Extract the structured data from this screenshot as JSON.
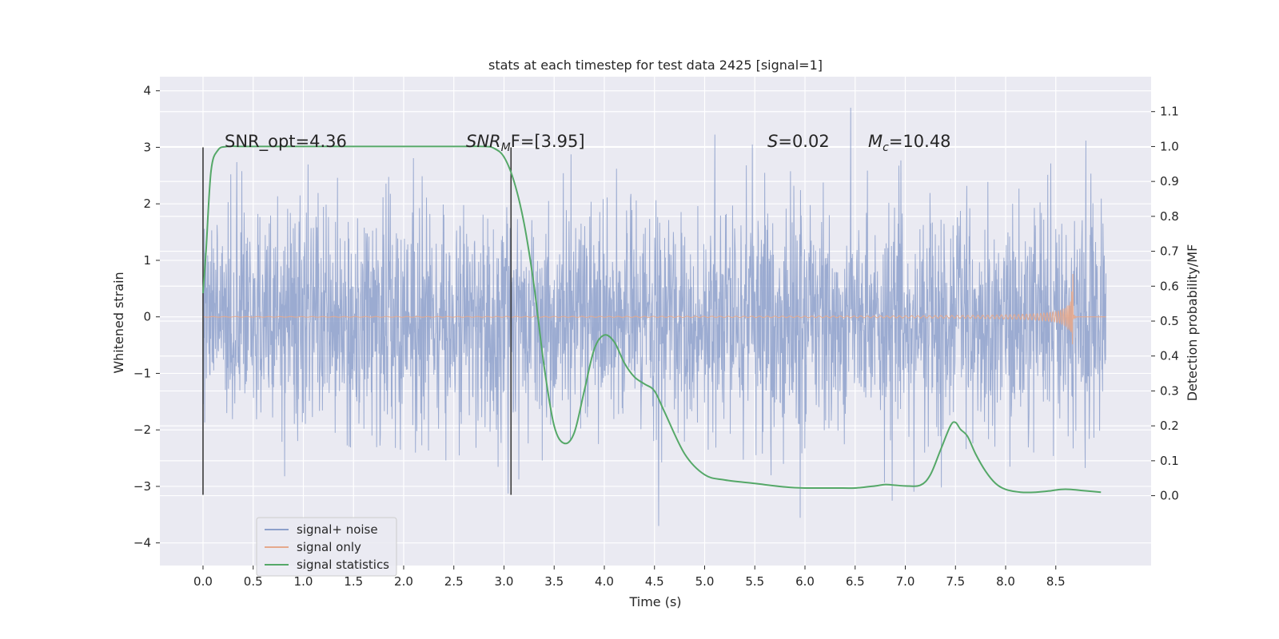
{
  "chart_data": {
    "type": "line",
    "title": "stats at each timestep for test data 2425 [signal=1]",
    "xlabel": "Time (s)",
    "ylabel": "Whitened strain",
    "y2label": "Detection probability/MF",
    "xlim": [
      -0.43,
      9.45
    ],
    "ylim": [
      -4.4,
      4.25
    ],
    "y2lim": [
      -0.2,
      1.2
    ],
    "xticks": [
      "0.0",
      "0.5",
      "1.0",
      "1.5",
      "2.0",
      "2.5",
      "3.0",
      "3.5",
      "4.0",
      "4.5",
      "5.0",
      "5.5",
      "6.0",
      "6.5",
      "7.0",
      "7.5",
      "8.0",
      "8.5"
    ],
    "yticks": [
      "4",
      "3",
      "2",
      "1",
      "0",
      "−1",
      "−2",
      "−3",
      "−4"
    ],
    "y2ticks": [
      "1.1",
      "1.0",
      "0.9",
      "0.8",
      "0.7",
      "0.6",
      "0.5",
      "0.4",
      "0.3",
      "0.2",
      "0.1",
      "0.0"
    ],
    "grid": true,
    "legend_position": "lower-left",
    "annotations": {
      "snr_opt": "SNR_opt=4.36",
      "snr_mf_main": "SNR",
      "snr_mf_sub": "M",
      "snr_mf_rest": "F=[3.95]",
      "s_italic": "S",
      "s_rest": "=0.02",
      "mc_main": "M",
      "mc_sub": "c",
      "mc_rest": "=10.48"
    },
    "vlines": [
      {
        "x": 0.0,
        "ymin": -3.15,
        "ymax": 3.0
      },
      {
        "x": 3.07,
        "ymin": -3.15,
        "ymax": 3.0
      }
    ],
    "series": [
      {
        "name": "signal+ noise",
        "color": "#8da0cb",
        "axis": "left",
        "t_range": [
          0.0,
          9.0
        ],
        "envelope": {
          "typical_sigma": 1.0,
          "min": -4.0,
          "max": 3.7
        }
      },
      {
        "name": "signal only",
        "color": "#e5a98c",
        "axis": "left",
        "t_range": [
          0.0,
          9.0
        ],
        "peak_time": 8.67,
        "peak_amplitude": 0.85,
        "min_amplitude": -0.62
      },
      {
        "name": "signal statistics",
        "color": "#55a868",
        "axis": "right",
        "x": [
          0.0,
          0.03,
          0.08,
          0.15,
          0.25,
          0.4,
          0.7,
          1.0,
          1.5,
          2.0,
          2.5,
          2.8,
          2.9,
          3.0,
          3.1,
          3.2,
          3.3,
          3.4,
          3.5,
          3.6,
          3.7,
          3.8,
          3.9,
          4.0,
          4.1,
          4.2,
          4.3,
          4.4,
          4.5,
          4.6,
          4.8,
          5.0,
          5.2,
          5.5,
          5.8,
          6.0,
          6.3,
          6.5,
          6.7,
          6.8,
          6.9,
          7.0,
          7.15,
          7.25,
          7.35,
          7.45,
          7.5,
          7.55,
          7.62,
          7.7,
          7.8,
          7.9,
          8.0,
          8.15,
          8.3,
          8.45,
          8.55,
          8.65,
          8.75,
          8.95
        ],
        "y": [
          0.58,
          0.7,
          0.93,
          0.99,
          1.0,
          1.0,
          1.0,
          1.0,
          1.0,
          1.0,
          1.0,
          1.0,
          0.995,
          0.97,
          0.9,
          0.78,
          0.6,
          0.37,
          0.2,
          0.15,
          0.18,
          0.3,
          0.42,
          0.46,
          0.44,
          0.38,
          0.34,
          0.32,
          0.3,
          0.24,
          0.12,
          0.06,
          0.045,
          0.035,
          0.025,
          0.022,
          0.022,
          0.022,
          0.028,
          0.032,
          0.03,
          0.028,
          0.03,
          0.06,
          0.13,
          0.2,
          0.21,
          0.19,
          0.17,
          0.12,
          0.07,
          0.035,
          0.018,
          0.01,
          0.01,
          0.014,
          0.018,
          0.018,
          0.015,
          0.01
        ]
      }
    ]
  }
}
